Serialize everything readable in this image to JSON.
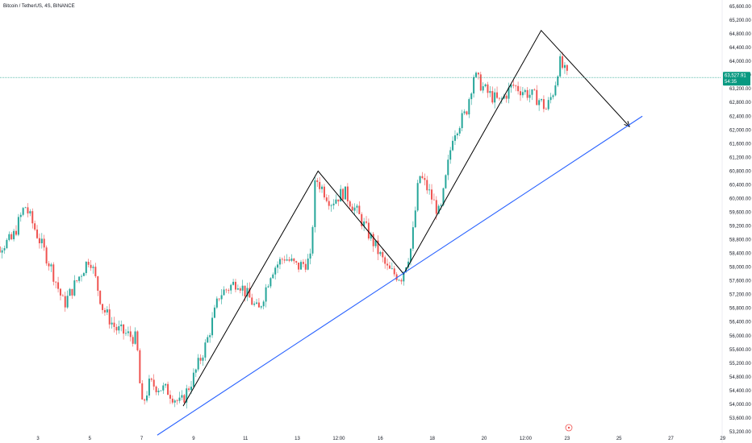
{
  "header": {
    "symbol_line": "Bitcoin / TetherUS, 4S, BINANCE"
  },
  "colors": {
    "up": "#26a69a",
    "down": "#ef5350",
    "trendline": "#2962ff",
    "zigzag": "#000000",
    "last_price": "#089981",
    "bg": "#ffffff"
  },
  "chart_data": {
    "type": "candlestick",
    "y_axis": {
      "side": "right",
      "min": 53200,
      "max": 65600,
      "ticks": [
        "53,200.00",
        "53,600.00",
        "54,000.00",
        "54,400.00",
        "54,800.00",
        "55,200.00",
        "55,600.00",
        "56,000.00",
        "56,400.00",
        "56,800.00",
        "57,200.00",
        "57,600.00",
        "58,000.00",
        "58,400.00",
        "58,800.00",
        "59,200.00",
        "59,600.00",
        "60,000.00",
        "60,400.00",
        "60,800.00",
        "61,200.00",
        "61,600.00",
        "62,000.00",
        "62,400.00",
        "62,800.00",
        "63,200.00",
        "63,600.00",
        "64,000.00",
        "64,400.00",
        "64,800.00",
        "65,200.00",
        "65,600.00"
      ]
    },
    "x_axis": {
      "ticks": [
        "3",
        "5",
        "7",
        "9",
        "11",
        "13",
        "12:00",
        "16",
        "18",
        "20",
        "12:00",
        "23",
        "25",
        "27",
        "29"
      ]
    },
    "last_price": {
      "price_text": "63,527.91",
      "countdown_text": "54:35",
      "value": 63527.91
    },
    "price_path": [
      {
        "x": 1,
        "y": 58400
      },
      {
        "x": 2,
        "y": 58800
      },
      {
        "x": 2.5,
        "y": 59800
      },
      {
        "x": 3.5,
        "y": 58000
      },
      {
        "x": 4,
        "y": 56900
      },
      {
        "x": 5,
        "y": 58300
      },
      {
        "x": 5.5,
        "y": 56800
      },
      {
        "x": 6,
        "y": 56200
      },
      {
        "x": 6.8,
        "y": 55900
      },
      {
        "x": 7,
        "y": 53900
      },
      {
        "x": 7.3,
        "y": 54600
      },
      {
        "x": 8,
        "y": 54400
      },
      {
        "x": 8.5,
        "y": 54000
      },
      {
        "x": 9,
        "y": 54800
      },
      {
        "x": 9.5,
        "y": 55800
      },
      {
        "x": 10,
        "y": 57200
      },
      {
        "x": 10.7,
        "y": 57600
      },
      {
        "x": 11.5,
        "y": 56700
      },
      {
        "x": 12,
        "y": 57900
      },
      {
        "x": 12.5,
        "y": 58300
      },
      {
        "x": 13,
        "y": 58000
      },
      {
        "x": 13.5,
        "y": 58200
      },
      {
        "x": 13.7,
        "y": 60600
      },
      {
        "x": 14.3,
        "y": 59900
      },
      {
        "x": 14.8,
        "y": 60200
      },
      {
        "x": 15.3,
        "y": 59600
      },
      {
        "x": 15.8,
        "y": 58900
      },
      {
        "x": 16.5,
        "y": 57900
      },
      {
        "x": 17,
        "y": 57700
      },
      {
        "x": 17.4,
        "y": 58600
      },
      {
        "x": 17.7,
        "y": 60700
      },
      {
        "x": 18,
        "y": 60300
      },
      {
        "x": 18.5,
        "y": 59500
      },
      {
        "x": 19,
        "y": 61900
      },
      {
        "x": 19.5,
        "y": 62500
      },
      {
        "x": 19.8,
        "y": 63600
      },
      {
        "x": 20.3,
        "y": 63100
      },
      {
        "x": 20.8,
        "y": 62800
      },
      {
        "x": 21.3,
        "y": 63300
      },
      {
        "x": 21.8,
        "y": 63100
      },
      {
        "x": 22.3,
        "y": 62900
      },
      {
        "x": 22.6,
        "y": 62600
      },
      {
        "x": 22.9,
        "y": 63200
      },
      {
        "x": 23.1,
        "y": 64000
      },
      {
        "x": 23.4,
        "y": 63550
      }
    ],
    "drawings": {
      "zigzag": [
        {
          "x": 8.6,
          "y": 53950
        },
        {
          "x": 13.8,
          "y": 60800
        },
        {
          "x": 17.1,
          "y": 57800
        },
        {
          "x": 22.4,
          "y": 64900
        },
        {
          "x": 25.8,
          "y": 62100
        }
      ],
      "trendline": [
        {
          "x": 7.6,
          "y": 53100
        },
        {
          "x": 26.3,
          "y": 62400
        }
      ]
    }
  }
}
